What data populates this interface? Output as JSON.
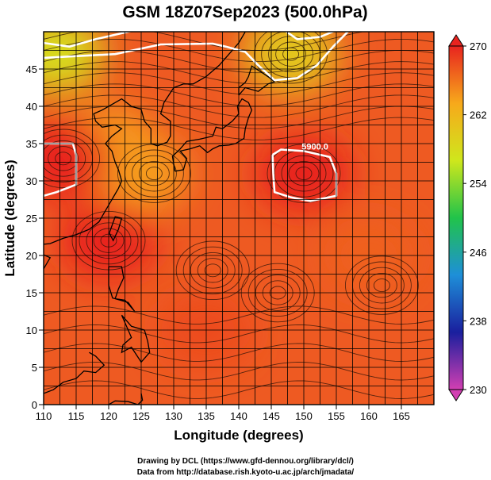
{
  "title": "GSM 18Z07Sep2023 (500.0hPa)",
  "credits": {
    "line1": "Drawing by DCL (https://www.gfd-dennou.org/library/dcl/)",
    "line2": "Data from http://database.rish.kyoto-u.ac.jp/arch/jmadata/"
  },
  "chart_data": {
    "type": "heatmap",
    "title": "GSM 18Z07Sep2023 (500.0hPa)",
    "xlabel": "Longitude (degrees)",
    "ylabel": "Latitude  (degrees)",
    "xlim": [
      110,
      170
    ],
    "ylim": [
      0,
      50
    ],
    "x_ticks": [
      110,
      115,
      120,
      125,
      130,
      135,
      140,
      145,
      150,
      155,
      160,
      165
    ],
    "y_ticks": [
      0,
      5,
      10,
      15,
      20,
      25,
      30,
      35,
      40,
      45
    ],
    "grid": true,
    "overlays": [
      "coastlines",
      "wind streamlines",
      "geopotential height contours"
    ],
    "colorbar": {
      "range": [
        230,
        270
      ],
      "ticks": [
        230,
        238,
        246,
        254,
        262,
        270
      ],
      "colors": [
        "#d23fb2",
        "#1a1f9e",
        "#1e8fd8",
        "#21c34a",
        "#cfe71c",
        "#f7a91b",
        "#e8241f"
      ]
    },
    "contours": [
      {
        "label": "5900.0",
        "lon": 150.5,
        "lat": 31.0
      }
    ],
    "field_regions": [
      {
        "lon": 148,
        "lat": 47,
        "value": 260
      },
      {
        "lon": 112,
        "lat": 47,
        "value": 258
      },
      {
        "lon": 120,
        "lat": 35,
        "value": 264
      },
      {
        "lon": 125,
        "lat": 31,
        "value": 264
      },
      {
        "lon": 150,
        "lat": 31,
        "value": 270
      },
      {
        "lon": 113,
        "lat": 33,
        "value": 270
      },
      {
        "lon": 120,
        "lat": 22,
        "value": 270
      },
      {
        "lon": 135,
        "lat": 10,
        "value": 268
      },
      {
        "lon": 160,
        "lat": 20,
        "value": 267
      }
    ]
  }
}
